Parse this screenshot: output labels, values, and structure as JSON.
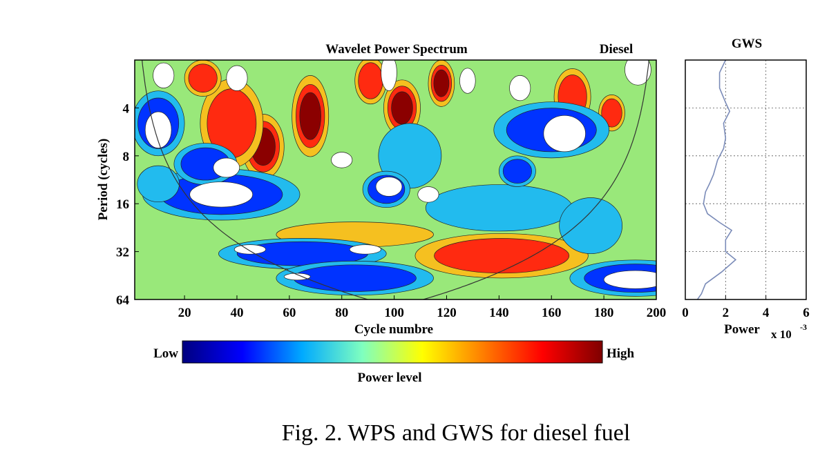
{
  "chart_data": [
    {
      "type": "heatmap",
      "title": "Wavelet Power Spectrum",
      "subtitle": "Diesel",
      "xlabel": "Cycle numbre",
      "ylabel": "Period (cycles)",
      "xlim": [
        1,
        200
      ],
      "ylim": [
        2,
        64
      ],
      "y_scale": "log2",
      "x_ticks": [
        "20",
        "40",
        "60",
        "80",
        "100",
        "120",
        "140",
        "160",
        "180",
        "200"
      ],
      "y_ticks": [
        "4",
        "8",
        "16",
        "32",
        "64"
      ],
      "colorbar": {
        "label": "Power level",
        "low_label": "Low",
        "high_label": "High",
        "colors": [
          "#00007f",
          "#0000ff",
          "#00aaff",
          "#7fffbf",
          "#ffff00",
          "#ff7f00",
          "#ff0000",
          "#7f0000"
        ]
      },
      "cone_of_influence": true,
      "contour_levels": [
        "#00008b",
        "#0033ff",
        "#22bbee",
        "#99e87a",
        "#f5c020",
        "#ff2a10",
        "#8b0000"
      ],
      "blobs": [
        {
          "x": 50,
          "p": 7,
          "level": 6,
          "rx": 8,
          "rp": 1.6
        },
        {
          "x": 38,
          "p": 5,
          "level": 5,
          "rx": 12,
          "rp": 1.9
        },
        {
          "x": 68,
          "p": 4.5,
          "level": 6,
          "rx": 7,
          "rp": 1.8
        },
        {
          "x": 103,
          "p": 4,
          "level": 6,
          "rx": 7,
          "rp": 1.5
        },
        {
          "x": 118,
          "p": 2.8,
          "level": 6,
          "rx": 5,
          "rp": 1.4
        },
        {
          "x": 91,
          "p": 2.7,
          "level": 5,
          "rx": 6,
          "rp": 1.4
        },
        {
          "x": 27,
          "p": 2.6,
          "level": 5,
          "rx": 7,
          "rp": 1.3
        },
        {
          "x": 168,
          "p": 3.4,
          "level": 5,
          "rx": 7,
          "rp": 1.5
        },
        {
          "x": 183,
          "p": 4.3,
          "level": 5,
          "rx": 5,
          "rp": 1.3
        },
        {
          "x": 141,
          "p": 34,
          "level": 5,
          "rx": 33,
          "rp": 1.38
        },
        {
          "x": 85,
          "p": 25,
          "level": 4,
          "rx": 30,
          "rp": 1.2
        },
        {
          "x": 10,
          "p": 5,
          "level": 1,
          "rx": 10,
          "rp": 1.6
        },
        {
          "x": 34,
          "p": 14,
          "level": 1,
          "rx": 30,
          "rp": 1.45
        },
        {
          "x": 65,
          "p": 33,
          "level": 1,
          "rx": 32,
          "rp": 1.25
        },
        {
          "x": 85,
          "p": 47,
          "level": 1,
          "rx": 30,
          "rp": 1.28
        },
        {
          "x": 160,
          "p": 5.5,
          "level": 1,
          "rx": 22,
          "rp": 1.5
        },
        {
          "x": 140,
          "p": 17,
          "level": 2,
          "rx": 28,
          "rp": 1.4
        },
        {
          "x": 192,
          "p": 47,
          "level": 1,
          "rx": 25,
          "rp": 1.3
        },
        {
          "x": 28,
          "p": 9,
          "level": 1,
          "rx": 12,
          "rp": 1.35
        },
        {
          "x": 106,
          "p": 8,
          "level": 2,
          "rx": 12,
          "rp": 1.6
        },
        {
          "x": 97,
          "p": 13,
          "level": 1,
          "rx": 9,
          "rp": 1.3
        },
        {
          "x": 147,
          "p": 10,
          "level": 1,
          "rx": 7,
          "rp": 1.25
        },
        {
          "x": 175,
          "p": 22,
          "level": 2,
          "rx": 12,
          "rp": 1.5
        },
        {
          "x": 10,
          "p": 12,
          "level": 2,
          "rx": 8,
          "rp": 1.3
        }
      ],
      "white_spots": [
        {
          "x": 34,
          "p": 14,
          "rx": 12,
          "rp": 1.2
        },
        {
          "x": 45,
          "p": 31,
          "rx": 6,
          "rp": 1.07
        },
        {
          "x": 89,
          "p": 31,
          "rx": 6,
          "rp": 1.07
        },
        {
          "x": 63,
          "p": 46,
          "rx": 5,
          "rp": 1.05
        },
        {
          "x": 192,
          "p": 48,
          "rx": 12,
          "rp": 1.14
        },
        {
          "x": 10,
          "p": 5.5,
          "rx": 5,
          "rp": 1.3
        },
        {
          "x": 165,
          "p": 5.8,
          "rx": 8,
          "rp": 1.3
        },
        {
          "x": 36,
          "p": 9.5,
          "rx": 5,
          "rp": 1.15
        },
        {
          "x": 98,
          "p": 12.5,
          "rx": 5,
          "rp": 1.15
        },
        {
          "x": 113,
          "p": 14,
          "rx": 4,
          "rp": 1.12
        },
        {
          "x": 80,
          "p": 8.5,
          "rx": 4,
          "rp": 1.12
        },
        {
          "x": 12,
          "p": 2.5,
          "rx": 4,
          "rp": 1.2
        },
        {
          "x": 40,
          "p": 2.6,
          "rx": 4,
          "rp": 1.2
        },
        {
          "x": 98,
          "p": 2.4,
          "rx": 3,
          "rp": 1.3
        },
        {
          "x": 128,
          "p": 2.7,
          "rx": 3,
          "rp": 1.2
        },
        {
          "x": 148,
          "p": 3,
          "rx": 4,
          "rp": 1.2
        },
        {
          "x": 193,
          "p": 2.3,
          "rx": 5,
          "rp": 1.25
        }
      ]
    },
    {
      "type": "line",
      "title": "GWS",
      "xlabel": "Power",
      "x_multiplier": "x 10",
      "x_multiplier_exp": "-3",
      "xlim": [
        0,
        6
      ],
      "x_ticks": [
        "0",
        "2",
        "4",
        "6"
      ],
      "ylim": [
        2,
        64
      ],
      "grid": true,
      "line_color": "#7a8bb8",
      "series": [
        {
          "points": [
            {
              "power": 2.0,
              "period": 2.0
            },
            {
              "power": 1.7,
              "period": 2.4
            },
            {
              "power": 1.7,
              "period": 3.0
            },
            {
              "power": 2.0,
              "period": 3.7
            },
            {
              "power": 2.2,
              "period": 4.2
            },
            {
              "power": 1.9,
              "period": 5.0
            },
            {
              "power": 2.0,
              "period": 6.2
            },
            {
              "power": 1.9,
              "period": 7.2
            },
            {
              "power": 1.6,
              "period": 8.5
            },
            {
              "power": 1.4,
              "period": 10.5
            },
            {
              "power": 1.2,
              "period": 12.0
            },
            {
              "power": 1.0,
              "period": 13.5
            },
            {
              "power": 0.9,
              "period": 16.0
            },
            {
              "power": 1.1,
              "period": 18.5
            },
            {
              "power": 1.7,
              "period": 21.0
            },
            {
              "power": 2.3,
              "period": 23.5
            },
            {
              "power": 2.0,
              "period": 27.0
            },
            {
              "power": 2.0,
              "period": 32.0
            },
            {
              "power": 2.5,
              "period": 36.0
            },
            {
              "power": 1.8,
              "period": 43.0
            },
            {
              "power": 1.0,
              "period": 51.0
            },
            {
              "power": 0.8,
              "period": 59.0
            },
            {
              "power": 0.6,
              "period": 64.0
            }
          ]
        }
      ]
    }
  ],
  "caption": "Fig. 2. WPS and GWS for diesel fuel"
}
